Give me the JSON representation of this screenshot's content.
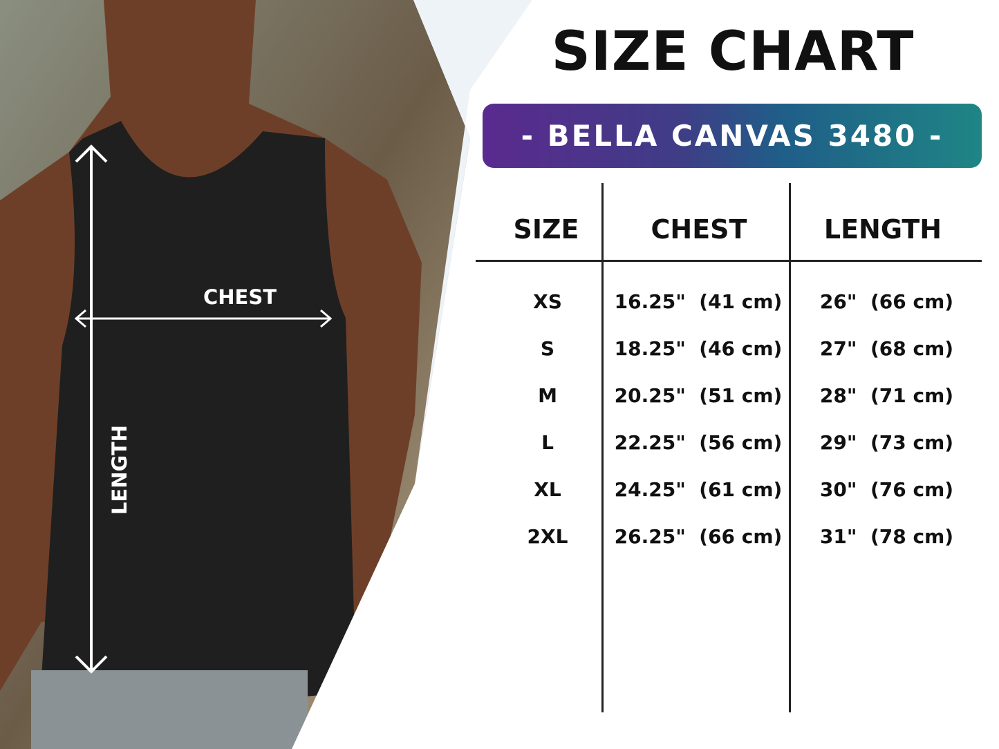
{
  "title": "SIZE CHART",
  "banner": "- BELLA CANVAS 3480 -",
  "colors": {
    "banner_start": "#5a2a8e",
    "banner_end": "#1f8585",
    "text": "#111111"
  },
  "photo": {
    "chest_label": "CHEST",
    "length_label": "LENGTH"
  },
  "table": {
    "headers": [
      "SIZE",
      "CHEST",
      "LENGTH"
    ],
    "rows": [
      {
        "size": "XS",
        "chest": "16.25\"  (41 cm)",
        "length": "26\"  (66 cm)"
      },
      {
        "size": "S",
        "chest": "18.25\"  (46 cm)",
        "length": "27\"  (68 cm)"
      },
      {
        "size": "M",
        "chest": "20.25\"  (51 cm)",
        "length": "28\"  (71 cm)"
      },
      {
        "size": "L",
        "chest": "22.25\"  (56 cm)",
        "length": "29\"  (73 cm)"
      },
      {
        "size": "XL",
        "chest": "24.25\"  (61 cm)",
        "length": "30\"  (76 cm)"
      },
      {
        "size": "2XL",
        "chest": "26.25\"  (66 cm)",
        "length": "31\"  (78 cm)"
      }
    ]
  }
}
